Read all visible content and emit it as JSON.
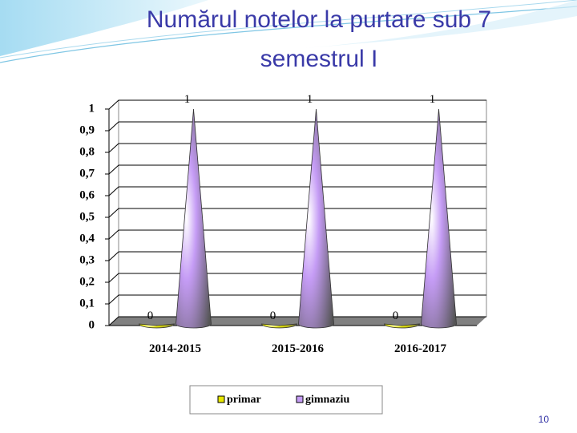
{
  "chart_data": {
    "type": "cone",
    "title": "Numărul  notelor  la  purtare sub  7",
    "subtitle": "semestrul I",
    "categories": [
      "2014-2015",
      "2015-2016",
      "2016-2017"
    ],
    "series": [
      {
        "name": "primar",
        "color": "#e8e800",
        "values": [
          0,
          0,
          0
        ]
      },
      {
        "name": "gimnaziu",
        "color": "#c59cf5",
        "values": [
          1,
          1,
          1
        ]
      }
    ],
    "ylim": [
      0,
      1
    ],
    "yticks": [
      0,
      {
        "value": 0.1,
        "label": "0,1"
      },
      {
        "value": 0.2,
        "label": "0,2"
      },
      {
        "value": 0.3,
        "label": "0,3"
      },
      {
        "value": 0.4,
        "label": "0,4"
      },
      {
        "value": 0.5,
        "label": "0,5"
      },
      {
        "value": 0.6,
        "label": "0,6"
      },
      {
        "value": 0.7,
        "label": "0,7"
      },
      {
        "value": 0.8,
        "label": "0,8"
      },
      {
        "value": 0.9,
        "label": "0,9"
      },
      1
    ],
    "grid": true,
    "legend": "bottom"
  },
  "page_number": "10"
}
